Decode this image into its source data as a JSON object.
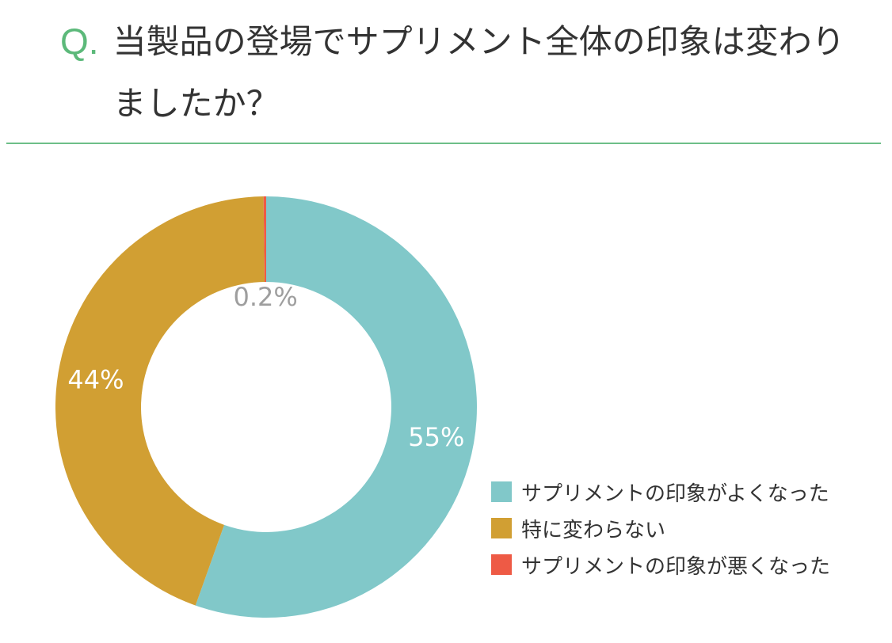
{
  "header": {
    "q_mark": "Q.",
    "question_text": "当製品の登場でサプリメント全体の印象は変わりましたか？"
  },
  "colors": {
    "accent": "#5cb97a",
    "divider": "#6dbf88",
    "outside_label": "#9e9e9e",
    "inside_label": "#ffffff"
  },
  "chart_data": {
    "type": "pie",
    "style": "donut",
    "start": "12 o'clock",
    "direction": "clockwise",
    "slices": [
      {
        "label": "サプリメントの印象がよくなった",
        "value": 55,
        "display": "55%",
        "color": "#81c8c9"
      },
      {
        "label": "特に変わらない",
        "value": 44,
        "display": "44%",
        "color": "#d19f33"
      },
      {
        "label": "サプリメントの印象が悪くなった",
        "value": 0.2,
        "display": "0.2%",
        "color": "#ee5a45"
      }
    ],
    "legend_position": "bottom-right"
  }
}
